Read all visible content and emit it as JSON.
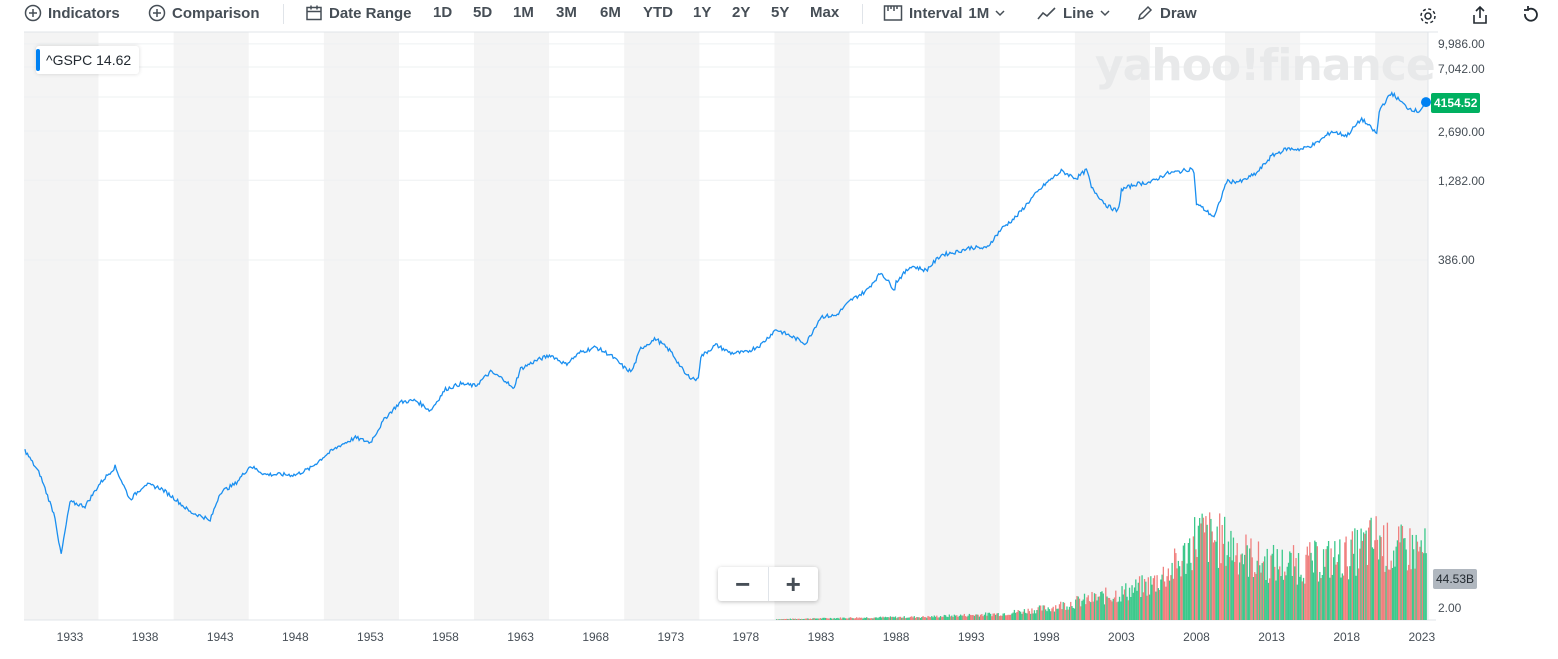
{
  "toolbar": {
    "indicators": "Indicators",
    "comparison": "Comparison",
    "date_range": "Date Range",
    "ranges": [
      "1D",
      "5D",
      "1M",
      "3M",
      "6M",
      "YTD",
      "1Y",
      "2Y",
      "5Y",
      "Max"
    ],
    "interval_label": "Interval",
    "interval_value": "1M",
    "chart_type": "Line",
    "draw": "Draw",
    "icons": [
      "plus-circle-icon",
      "calendar-icon",
      "interval-icon",
      "line-chart-icon",
      "pencil-icon",
      "gear-icon",
      "share-icon",
      "reset-icon"
    ]
  },
  "legend": {
    "symbol": "^GSPC",
    "value": "14.62"
  },
  "watermark": "yahoo!finance",
  "price_tag": "4154.52",
  "volume_tag": "44.53B",
  "zoom": {
    "minus": "−",
    "plus": "+"
  },
  "colors": {
    "line": "#1a8ff0",
    "up": "#3cc88b",
    "down": "#f0807f",
    "price_tag": "#00b061",
    "band": "#f4f4f4"
  },
  "chart_data": {
    "type": "line",
    "title": "",
    "yscale": "log",
    "ylabels": [
      "9,986.00",
      "7,042.00",
      "2,690.00",
      "1,282.00",
      "386.00"
    ],
    "yticks": [
      9986,
      7042,
      2690,
      1282,
      386
    ],
    "volume_axis_label": "2.00",
    "xlabels": [
      "1933",
      "1938",
      "1943",
      "1948",
      "1953",
      "1958",
      "1963",
      "1968",
      "1973",
      "1978",
      "1983",
      "1988",
      "1993",
      "1998",
      "2003",
      "2008",
      "2013",
      "2018",
      "2023"
    ],
    "xlim": [
      1929.9,
      2023.3
    ],
    "series": [
      {
        "x": [
          1930,
          1931,
          1932,
          1932.4,
          1933,
          1934,
          1935,
          1936,
          1937,
          1938,
          1939,
          1940,
          1941,
          1942,
          1942.3,
          1943,
          1944,
          1945,
          1946,
          1947,
          1948,
          1949,
          1950,
          1951,
          1952,
          1953,
          1954,
          1955,
          1956,
          1957,
          1958,
          1959,
          1960,
          1961,
          1962,
          1962.5,
          1963,
          1964,
          1965,
          1966,
          1967,
          1968,
          1969,
          1970,
          1970.4,
          1971,
          1972,
          1973,
          1974,
          1974.8,
          1975,
          1976,
          1977,
          1978,
          1979,
          1980,
          1981,
          1982,
          1982.6,
          1983,
          1984,
          1985,
          1986,
          1987,
          1987.9,
          1988,
          1989,
          1990,
          1991,
          1992,
          1993,
          1994,
          1995,
          1996,
          1997,
          1998,
          1999,
          2000,
          2000.7,
          2001,
          2002,
          2002.8,
          2003,
          2004,
          2005,
          2006,
          2007,
          2007.8,
          2008,
          2009.2,
          2010,
          2011,
          2012,
          2013,
          2014,
          2015,
          2016,
          2017,
          2018,
          2019,
          2020,
          2020.2,
          2021,
          2022,
          2022.8,
          2023.3
        ],
        "y": [
          22,
          15.3,
          8.1,
          4.5,
          10.1,
          9.5,
          13.4,
          17.2,
          10.5,
          13.2,
          12.5,
          10.6,
          8.7,
          8.0,
          7.5,
          11.7,
          13.3,
          17.4,
          15.3,
          15.3,
          15.2,
          16.8,
          20.4,
          23.8,
          26.6,
          24.8,
          36,
          45.5,
          46.7,
          40,
          55.2,
          59.9,
          58.1,
          71.6,
          63.1,
          55,
          75,
          84.8,
          92.4,
          80.3,
          96.5,
          103.9,
          92.1,
          75,
          72,
          102.1,
          118,
          97.6,
          68.6,
          63,
          90.2,
          107.5,
          95.1,
          96.1,
          107.9,
          135.8,
          122.6,
          110,
          140.6,
          164.9,
          167.2,
          211.3,
          242.2,
          320,
          247,
          277.7,
          353.4,
          330.2,
          417.1,
          435.7,
          466.5,
          459.3,
          615.9,
          740.7,
          970.4,
          1229.2,
          1469.3,
          1320,
          1500,
          1148,
          879.8,
          800,
          1111.9,
          1211.9,
          1248.3,
          1418.3,
          1468.4,
          1540,
          903.3,
          735,
          1257.6,
          1257.6,
          1426.2,
          1848.4,
          2058.9,
          2043.9,
          2238.8,
          2673.6,
          2506.9,
          3230.8,
          2584,
          3756,
          4766,
          3839.5,
          3600,
          4154.52
        ]
      }
    ],
    "volume_billions": {
      "x": [
        1980,
        1985,
        1990,
        1995,
        1998,
        2000,
        2003,
        2005,
        2007,
        2008,
        2009,
        2010,
        2012,
        2014,
        2016,
        2018,
        2020,
        2021,
        2022,
        2023.3
      ],
      "y": [
        0.9,
        2.5,
        3.5,
        7,
        13,
        20,
        30,
        40,
        65,
        95,
        90,
        85,
        65,
        60,
        65,
        70,
        90,
        75,
        80,
        75
      ]
    }
  }
}
